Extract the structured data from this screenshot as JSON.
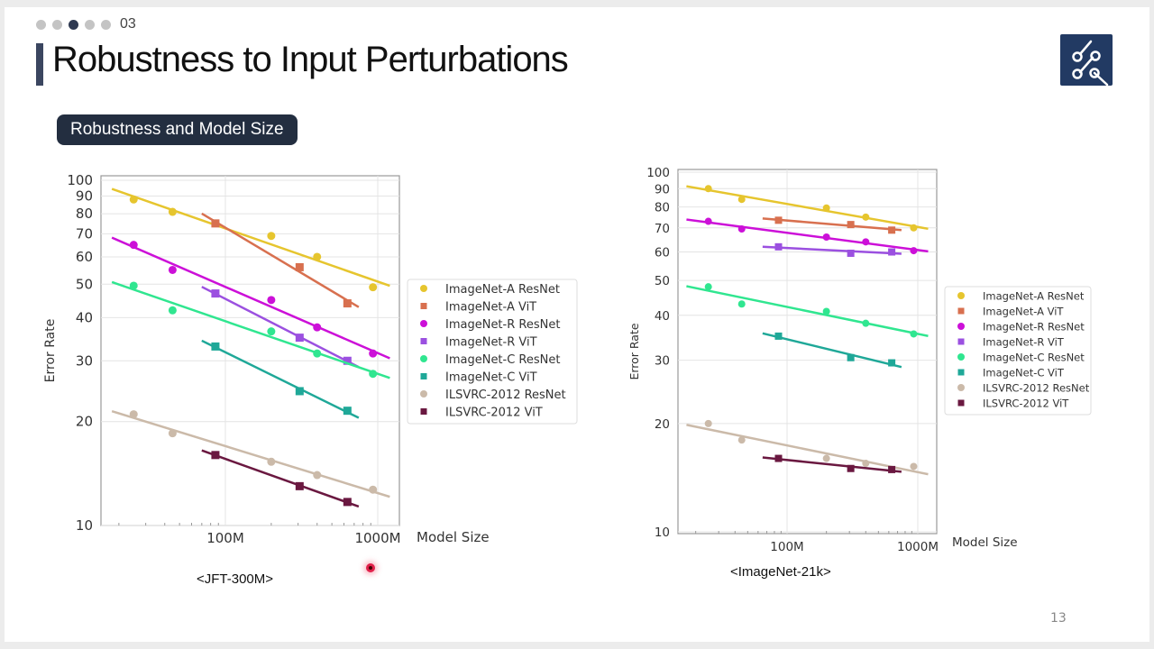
{
  "header": {
    "section_dots": 5,
    "active_dot": 3,
    "section_number": "03",
    "title": "Robustness to Input Perturbations",
    "subtitle_pill": "Robustness and Model Size",
    "logo_icon": "circuit-nodes-icon",
    "page_number": "13"
  },
  "colors": {
    "ImageNet-A ResNet": "#e6c52e",
    "ImageNet-A ViT": "#d8704f",
    "ImageNet-R ResNet": "#cc10d8",
    "ImageNet-R ViT": "#9b50e0",
    "ImageNet-C ResNet": "#30e690",
    "ImageNet-C ViT": "#1fa898",
    "ILSVRC-2012 ResNet": "#cbbaa9",
    "ILSVRC-2012 ViT": "#6a1840"
  },
  "chart_data": [
    {
      "type": "scatter",
      "caption": "<JFT-300M>",
      "xlabel": "Model Size",
      "ylabel": "Error Rate",
      "x_scale": "log",
      "y_scale": "log",
      "xlim": [
        17,
        1400
      ],
      "ylim": [
        10,
        100
      ],
      "x_unit": "M params",
      "x_ticks": [
        {
          "value": 100,
          "label": "100M"
        },
        {
          "value": 1000,
          "label": "1000M"
        }
      ],
      "y_ticks": [
        10,
        20,
        30,
        40,
        50,
        60,
        70,
        80,
        90,
        100
      ],
      "grid": true,
      "legend": "right",
      "fit_lines": true,
      "series": [
        {
          "name": "ImageNet-A ResNet",
          "marker": "circle",
          "x": [
            25,
            45,
            200,
            400,
            930
          ],
          "y": [
            88,
            81,
            69,
            60,
            49
          ]
        },
        {
          "name": "ImageNet-A ViT",
          "marker": "square",
          "x": [
            86,
            307,
            632
          ],
          "y": [
            75,
            56,
            44
          ]
        },
        {
          "name": "ImageNet-R ResNet",
          "marker": "circle",
          "x": [
            25,
            45,
            200,
            400,
            930
          ],
          "y": [
            65,
            55,
            45,
            37.5,
            31.5
          ]
        },
        {
          "name": "ImageNet-R ViT",
          "marker": "square",
          "x": [
            86,
            307,
            632
          ],
          "y": [
            47,
            35,
            30
          ]
        },
        {
          "name": "ImageNet-C ResNet",
          "marker": "circle",
          "x": [
            25,
            45,
            200,
            400,
            930
          ],
          "y": [
            49.5,
            42,
            36.5,
            31.5,
            27.5
          ]
        },
        {
          "name": "ImageNet-C ViT",
          "marker": "square",
          "x": [
            86,
            307,
            632
          ],
          "y": [
            33,
            24.5,
            21.5
          ]
        },
        {
          "name": "ILSVRC-2012 ResNet",
          "marker": "circle",
          "x": [
            25,
            45,
            200,
            400,
            930
          ],
          "y": [
            21,
            18.5,
            15.3,
            14,
            12.7
          ]
        },
        {
          "name": "ILSVRC-2012 ViT",
          "marker": "square",
          "x": [
            86,
            307,
            632
          ],
          "y": [
            16,
            13,
            11.7
          ]
        }
      ]
    },
    {
      "type": "scatter",
      "caption": "<ImageNet-21k>",
      "xlabel": "Model Size",
      "ylabel": "Error Rate",
      "x_scale": "log",
      "y_scale": "log",
      "xlim": [
        15,
        1500
      ],
      "ylim": [
        10,
        100
      ],
      "x_unit": "M params",
      "x_ticks": [
        {
          "value": 100,
          "label": "100M"
        },
        {
          "value": 1000,
          "label": "1000M"
        }
      ],
      "y_ticks": [
        10,
        20,
        30,
        40,
        50,
        60,
        70,
        80,
        90,
        100
      ],
      "grid": true,
      "legend": "right",
      "fit_lines": true,
      "series": [
        {
          "name": "ImageNet-A ResNet",
          "marker": "circle",
          "x": [
            25,
            45,
            200,
            400,
            930
          ],
          "y": [
            90,
            84,
            79.5,
            75,
            70
          ]
        },
        {
          "name": "ImageNet-A ViT",
          "marker": "square",
          "x": [
            86,
            307,
            632
          ],
          "y": [
            73.5,
            71.5,
            69
          ]
        },
        {
          "name": "ImageNet-R ResNet",
          "marker": "circle",
          "x": [
            25,
            45,
            200,
            400,
            930
          ],
          "y": [
            73,
            69.5,
            66,
            64,
            60.5
          ]
        },
        {
          "name": "ImageNet-R ViT",
          "marker": "square",
          "x": [
            86,
            307,
            632
          ],
          "y": [
            62,
            59.5,
            60
          ]
        },
        {
          "name": "ImageNet-C ResNet",
          "marker": "circle",
          "x": [
            25,
            45,
            200,
            400,
            930
          ],
          "y": [
            48,
            43,
            41,
            38,
            35.5
          ]
        },
        {
          "name": "ImageNet-C ViT",
          "marker": "square",
          "x": [
            86,
            307,
            632
          ],
          "y": [
            35,
            30.5,
            29.5
          ]
        },
        {
          "name": "ILSVRC-2012 ResNet",
          "marker": "circle",
          "x": [
            25,
            45,
            200,
            400,
            930
          ],
          "y": [
            20,
            18,
            16,
            15.5,
            15.2
          ]
        },
        {
          "name": "ILSVRC-2012 ViT",
          "marker": "square",
          "x": [
            86,
            307,
            632
          ],
          "y": [
            16,
            15,
            14.9
          ]
        }
      ]
    }
  ]
}
